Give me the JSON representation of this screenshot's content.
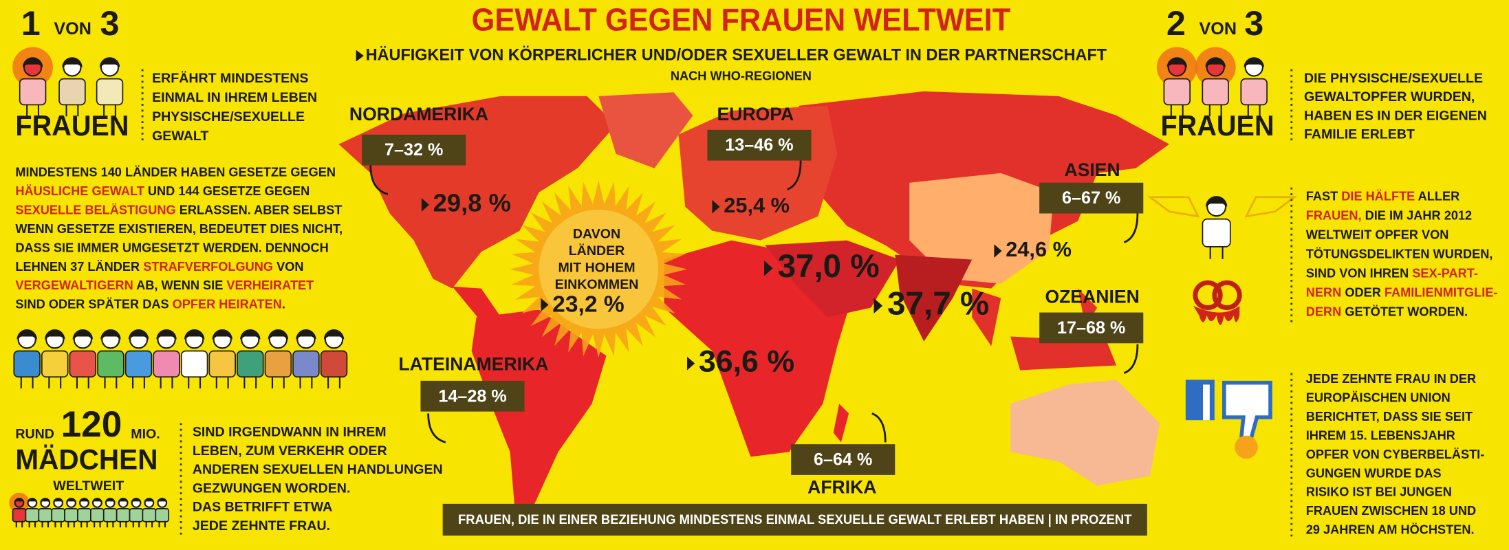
{
  "header": {
    "title": "GEWALT GEGEN FRAUEN WELTWEIT",
    "subtitle": "HÄUFIGKEIT VON KÖRPERLICHER UND/ODER SEXUELLER GEWALT IN DER PARTNERSCHAFT",
    "note": "NACH WHO-REGIONEN"
  },
  "left": {
    "stat": {
      "count": "1",
      "von": "VON",
      "total": "3",
      "label": "FRAUEN",
      "text": [
        "ERFÄHRT MINDESTENS",
        "EINMAL IN IHREM LEBEN",
        "PHYSISCHE/SEXUELLE",
        "GEWALT"
      ]
    },
    "laws": [
      [
        "MINDESTENS 140 LÄNDER HABEN GESETZE GEGEN"
      ],
      [
        {
          "text": "HÄUSLICHE GEWALT",
          "red": true
        },
        " UND 144 GESETZE GEGEN"
      ],
      [
        {
          "text": "SEXUELLE BELÄSTIGUNG",
          "red": true
        },
        " ERLASSEN. ABER SELBST"
      ],
      [
        "WENN GESETZE EXISTIEREN, BEDEUTET DIES NICHT,"
      ],
      [
        "DASS SIE IMMER UMGESETZT WERDEN. DENNOCH"
      ],
      [
        "LEHNEN 37 LÄNDER ",
        {
          "text": "STRAFVERFOLGUNG",
          "red": true
        },
        " VON"
      ],
      [
        {
          "text": "VERGEWALTIGERN",
          "red": true
        },
        " AB, WENN SIE ",
        {
          "text": "VERHEIRATET",
          "red": true
        }
      ],
      [
        "SIND ODER SPÄTER DAS ",
        {
          "text": "OPFER HEIRATEN",
          "red": true
        },
        "."
      ]
    ],
    "girls": {
      "prefix": "RUND",
      "number": "120",
      "unit": "MIO.",
      "label": "MÄDCHEN",
      "sublabel": "WELTWEIT",
      "text": [
        "SIND IRGENDWANN IN IHREM",
        "LEBEN, ZUM VERKEHR ODER",
        "ANDEREN SEXUELLEN HANDLUNGEN",
        "GEZWUNGEN WORDEN.",
        "DAS BETRIFFT ETWA",
        "JEDE ZEHNTE FRAU."
      ]
    }
  },
  "right": {
    "stat": {
      "count": "2",
      "von": "VON",
      "total": "3",
      "label": "FRAUEN",
      "text": [
        "DIE PHYSISCHE/SEXUELLE",
        "GEWALTOPFER WURDEN,",
        "HABEN ES IN DER EIGENEN",
        "FAMILIE ERLEBT"
      ]
    },
    "homicide": [
      [
        "FAST ",
        {
          "text": "DIE HÄLFTE",
          "red": true
        },
        " ALLER"
      ],
      [
        {
          "text": "FRAUEN,",
          "red": true
        },
        " DIE IM JAHR 2012"
      ],
      [
        "WELTWEIT OPFER VON"
      ],
      [
        "TÖTUNGSDELIKTEN WURDEN,"
      ],
      [
        "SIND VON IHREN ",
        {
          "text": "SEX-PART-",
          "red": true
        }
      ],
      [
        {
          "text": "NERN",
          "red": true
        },
        " ODER ",
        {
          "text": "FAMILIENMITGLIE-",
          "red": true
        }
      ],
      [
        {
          "text": "DERN",
          "red": true
        },
        " GETÖTET WORDEN."
      ]
    ],
    "cyber": [
      "JEDE ZEHNTE FRAU IN DER",
      "EUROPÄISCHEN UNION",
      "BERICHTET, DASS SIE SEIT",
      "IHREM 15. LEBENSJAHR",
      "OPFER VON CYBERBELÄSTI-",
      "GUNGEN WURDE DAS",
      "RISIKO IST BEI JUNGEN",
      "FRAUEN ZWISCHEN 18 UND",
      "29 JAHREN AM HÖCHSTEN."
    ]
  },
  "map": {
    "regions": [
      {
        "name": "NORDAMERIKA",
        "range": "7–32 %",
        "value": "29,8 %"
      },
      {
        "name": "EUROPA",
        "range": "13–46 %",
        "value": "25,4 %"
      },
      {
        "name": "ASIEN",
        "range": "6–67 %",
        "value": "24,6 %"
      },
      {
        "name": "OZEANIEN",
        "range": "17–68 %"
      },
      {
        "name": "LATEINAMERIKA",
        "range": "14–28 %"
      },
      {
        "name": "AFRIKA",
        "range": "6–64 %",
        "value": "36,6 %"
      }
    ],
    "unnamed_values": [
      "37,0 %",
      "37,7 %"
    ],
    "high_income": {
      "text": [
        "DAVON",
        "LÄNDER",
        "MIT HOHEM",
        "EINKOMMEN"
      ],
      "value": "23,2 %"
    },
    "legend": "FRAUEN, DIE IN EINER BEZIEHUNG MINDESTENS EINMAL SEXUELLE GEWALT ERLEBT HABEN | IN PROZENT"
  }
}
